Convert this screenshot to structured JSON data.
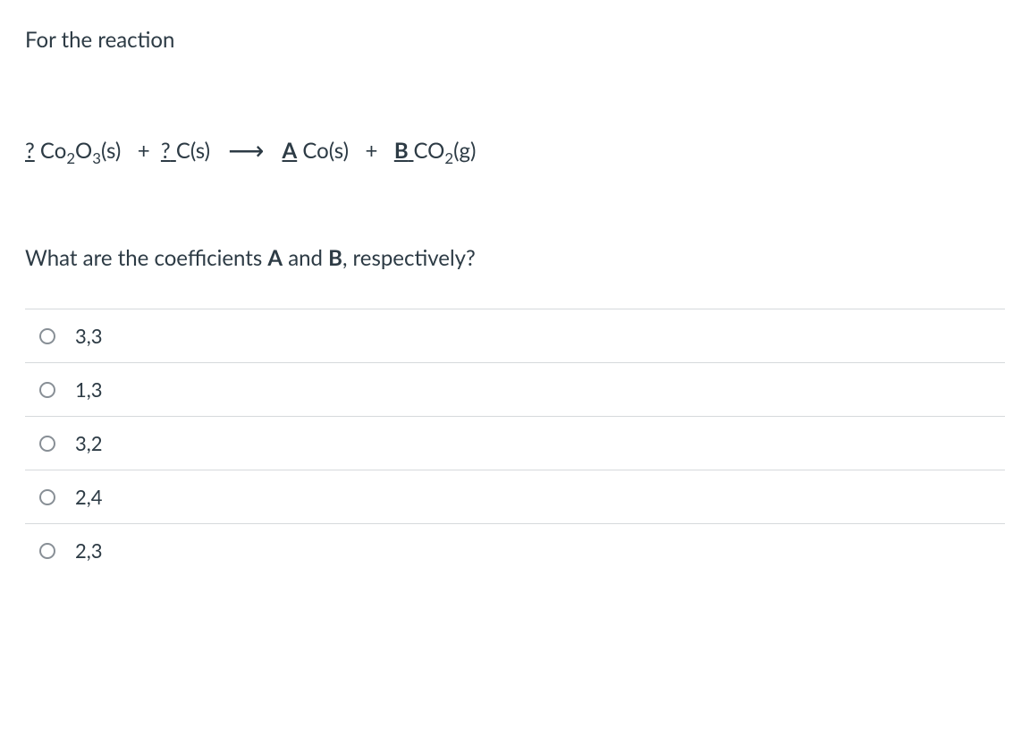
{
  "intro_text": "For the reaction",
  "equation": {
    "coef1": "?",
    "species1_base": "Co",
    "species1_sub1": "2",
    "species1_mid": "O",
    "species1_sub2": "3",
    "species1_state": "(s)",
    "plus": "+",
    "coef2": "?",
    "species2": "C(s)",
    "arrow": "⟶",
    "coefA": "A",
    "species3": "Co(s)",
    "coefB": "B",
    "species4_base": "CO",
    "species4_sub": "2",
    "species4_state": "(g)"
  },
  "question_parts": {
    "pre": "What are the coefficients ",
    "a": "A",
    "mid": " and ",
    "b": "B",
    "post": ", respectively?"
  },
  "options": [
    {
      "label": "3,3"
    },
    {
      "label": "1,3"
    },
    {
      "label": "3,2"
    },
    {
      "label": "2,4"
    },
    {
      "label": "2,3"
    }
  ],
  "colors": {
    "text": "#2d3b45",
    "border": "#d6d9dc",
    "radio_border": "#888f96",
    "background": "#ffffff"
  }
}
